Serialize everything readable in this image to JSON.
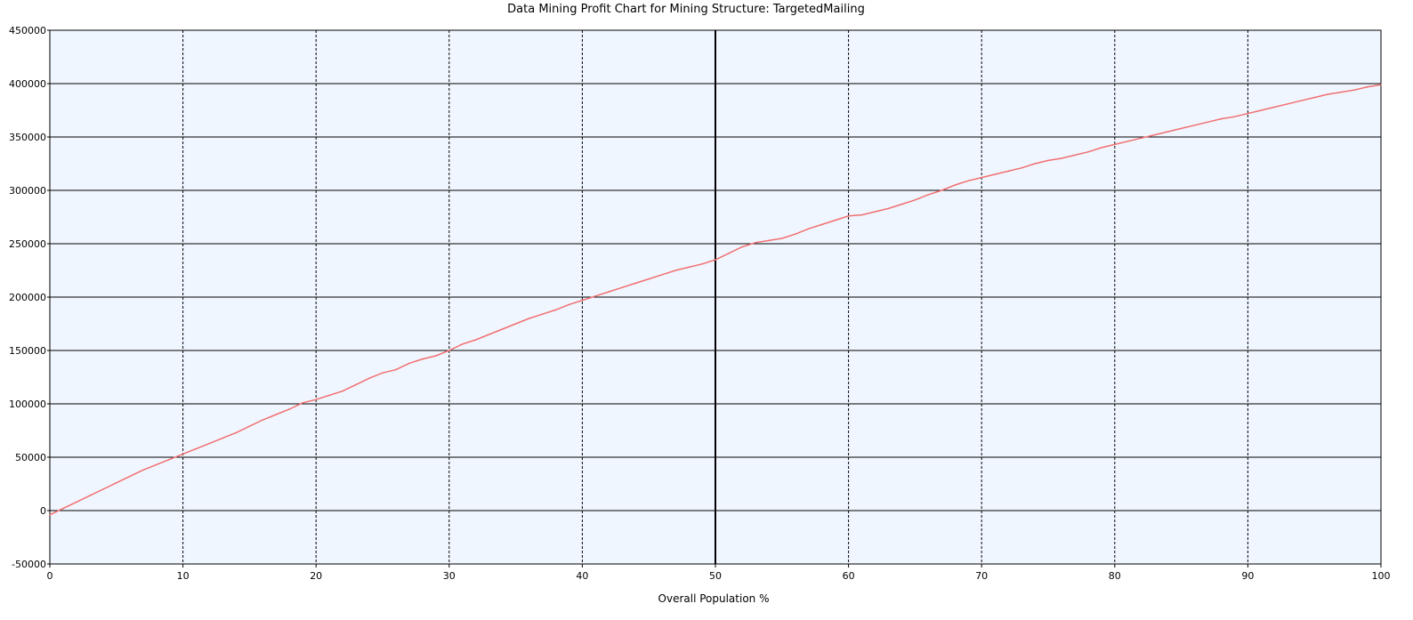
{
  "chart_data": {
    "type": "line",
    "title": "Data Mining Profit Chart for Mining Structure: TargetedMailing",
    "xlabel": "Overall Population %",
    "ylabel": "",
    "xlim": [
      0,
      100
    ],
    "ylim": [
      -50000,
      450000
    ],
    "x_ticks": [
      "0",
      "10",
      "20",
      "30",
      "40",
      "50",
      "60",
      "70",
      "80",
      "90",
      "100"
    ],
    "y_ticks": [
      "-50000",
      "0",
      "50000",
      "100000",
      "150000",
      "200000",
      "250000",
      "300000",
      "350000",
      "400000",
      "450000"
    ],
    "grid": {
      "horizontal": "solid",
      "vertical": "dashed"
    },
    "marker_line_x": 50,
    "colors": {
      "plot_background": "#f0f6ff",
      "series": "#f07070",
      "grid": "#000000"
    },
    "series": [
      {
        "x": [
          0,
          1,
          2,
          3,
          4,
          5,
          6,
          7,
          8,
          9,
          10,
          11,
          12,
          13,
          14,
          15,
          16,
          17,
          18,
          19,
          20,
          21,
          22,
          23,
          24,
          25,
          26,
          27,
          28,
          29,
          30,
          31,
          32,
          33,
          34,
          35,
          36,
          37,
          38,
          39,
          40,
          41,
          42,
          43,
          44,
          45,
          46,
          47,
          48,
          49,
          50,
          51,
          52,
          53,
          54,
          55,
          56,
          57,
          58,
          59,
          60,
          61,
          62,
          63,
          64,
          65,
          66,
          67,
          68,
          69,
          70,
          71,
          72,
          73,
          74,
          75,
          76,
          77,
          78,
          79,
          80,
          81,
          82,
          83,
          84,
          85,
          86,
          87,
          88,
          89,
          90,
          91,
          92,
          93,
          94,
          95,
          96,
          97,
          98,
          99,
          100
        ],
        "values": [
          -4000,
          2000,
          8000,
          14000,
          20000,
          26000,
          32000,
          38000,
          43000,
          48000,
          53000,
          58000,
          63000,
          68000,
          73000,
          79000,
          85000,
          90000,
          95000,
          101000,
          104000,
          108000,
          112000,
          118000,
          124000,
          129000,
          132000,
          138000,
          142000,
          145000,
          150000,
          156000,
          160000,
          165000,
          170000,
          175000,
          180000,
          184000,
          188000,
          193000,
          197000,
          201000,
          205000,
          209000,
          213000,
          217000,
          221000,
          225000,
          228000,
          231000,
          235000,
          241000,
          247000,
          251000,
          253000,
          255000,
          259000,
          264000,
          268000,
          272000,
          276000,
          277000,
          280000,
          283000,
          287000,
          291000,
          296000,
          300000,
          305000,
          309000,
          312000,
          315000,
          318000,
          321000,
          325000,
          328000,
          330000,
          333000,
          336000,
          340000,
          343000,
          346000,
          349000,
          352000,
          355000,
          358000,
          361000,
          364000,
          367000,
          369000,
          372000,
          375000,
          378000,
          381000,
          384000,
          387000,
          390000,
          392000,
          394000,
          397000,
          399000
        ]
      }
    ]
  }
}
